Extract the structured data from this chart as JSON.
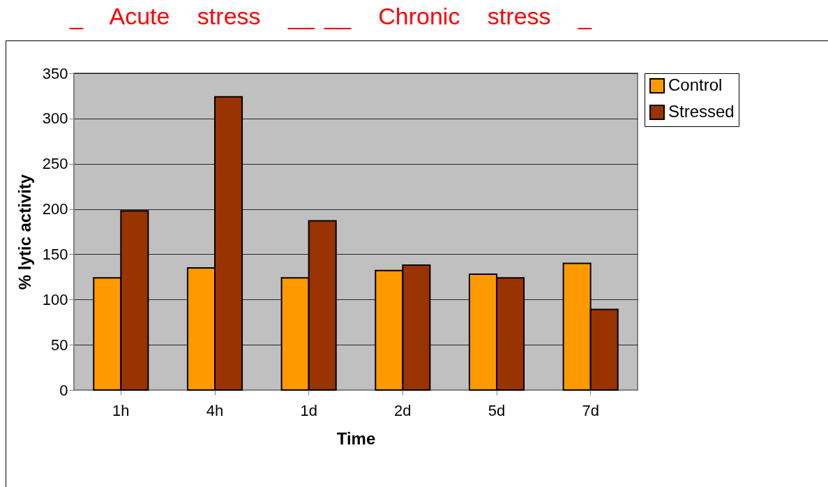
{
  "chart_data": {
    "type": "bar",
    "annotations": [
      "_ Acute stress __",
      "__ Chronic stress _"
    ],
    "xlabel": "Time",
    "ylabel": "% lytic activity",
    "categories": [
      "1h",
      "4h",
      "1d",
      "2d",
      "5d",
      "7d"
    ],
    "series": [
      {
        "name": "Control",
        "color": "#ff9900",
        "values": [
          124,
          135,
          124,
          132,
          128,
          140
        ]
      },
      {
        "name": "Stressed",
        "color": "#993300",
        "values": [
          198,
          324,
          187,
          138,
          124,
          89
        ]
      }
    ],
    "ylim": [
      0,
      350
    ],
    "yticks": [
      0,
      50,
      100,
      150,
      200,
      250,
      300,
      350
    ],
    "grid": "y",
    "legend": "right"
  }
}
